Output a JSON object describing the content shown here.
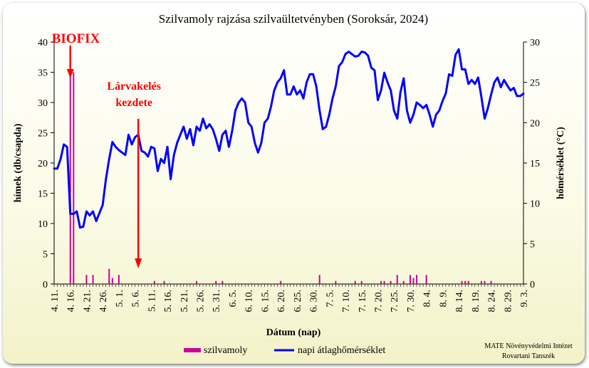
{
  "chart_data": {
    "type": "bar+line",
    "title": "Szilvamoly rajzása szilvaültetvényben (Soroksár, 2024)",
    "xlabel": "Dátum (nap)",
    "ylabel_left": "hímek (db/csapda)",
    "ylabel_right": "hőmérséklet (°C)",
    "ylim_left": [
      0,
      40
    ],
    "ylim_right": [
      0,
      30
    ],
    "yticks_left": [
      "0",
      "5",
      "10",
      "15",
      "20",
      "25",
      "30",
      "35",
      "40"
    ],
    "yticks_right": [
      "0",
      "5",
      "10",
      "15",
      "20",
      "25",
      "30"
    ],
    "x_start": "2024-04-11",
    "x_end": "2024-09-03",
    "x_tick_labels": [
      "4. 11.",
      "4. 16.",
      "4. 21.",
      "4. 26.",
      "5. 1.",
      "5. 6.",
      "5. 11.",
      "5. 16.",
      "5. 21.",
      "5. 26.",
      "5. 31.",
      "6. 5.",
      "6. 10.",
      "6. 15.",
      "6. 20.",
      "6. 25.",
      "6. 30.",
      "7. 5.",
      "7. 10.",
      "7. 15.",
      "7. 20.",
      "7. 25.",
      "7. 30.",
      "8. 4.",
      "8. 9.",
      "8. 14.",
      "8. 19.",
      "8. 24.",
      "8. 29.",
      "9. 3."
    ],
    "grid": false,
    "series": [
      {
        "name": "szilvamoly",
        "type": "bar",
        "color": "#cc0099",
        "values": [
          {
            "date": "2024-04-16",
            "value": 35
          },
          {
            "date": "2024-04-17",
            "value": 35
          },
          {
            "date": "2024-04-21",
            "value": 1.5
          },
          {
            "date": "2024-04-23",
            "value": 1.5
          },
          {
            "date": "2024-04-28",
            "value": 2.5
          },
          {
            "date": "2024-04-29",
            "value": 1
          },
          {
            "date": "2024-05-01",
            "value": 1.5
          },
          {
            "date": "2024-05-12",
            "value": 0.5
          },
          {
            "date": "2024-05-15",
            "value": 0.5
          },
          {
            "date": "2024-05-25",
            "value": 0.5
          },
          {
            "date": "2024-05-31",
            "value": 0.5
          },
          {
            "date": "2024-06-02",
            "value": 0.5
          },
          {
            "date": "2024-06-20",
            "value": 0.5
          },
          {
            "date": "2024-07-02",
            "value": 1.5
          },
          {
            "date": "2024-07-07",
            "value": 0.5
          },
          {
            "date": "2024-07-13",
            "value": 0.5
          },
          {
            "date": "2024-07-15",
            "value": 0.5
          },
          {
            "date": "2024-07-21",
            "value": 0.5
          },
          {
            "date": "2024-07-22",
            "value": 0.5
          },
          {
            "date": "2024-07-24",
            "value": 0.5
          },
          {
            "date": "2024-07-26",
            "value": 1.5
          },
          {
            "date": "2024-07-28",
            "value": 0.5
          },
          {
            "date": "2024-07-30",
            "value": 1.5
          },
          {
            "date": "2024-07-31",
            "value": 1
          },
          {
            "date": "2024-08-01",
            "value": 1.5
          },
          {
            "date": "2024-08-04",
            "value": 1.5
          },
          {
            "date": "2024-08-15",
            "value": 0.5
          },
          {
            "date": "2024-08-16",
            "value": 0.5
          },
          {
            "date": "2024-08-17",
            "value": 0.5
          },
          {
            "date": "2024-08-21",
            "value": 0.5
          },
          {
            "date": "2024-08-22",
            "value": 0.5
          },
          {
            "date": "2024-08-24",
            "value": 0.5
          }
        ]
      },
      {
        "name": "napi átlaghőmérséklet",
        "type": "line",
        "color": "#0000ff",
        "axis": "right",
        "start_date": "2024-04-11",
        "values": [
          14.3,
          14.3,
          15.5,
          17.3,
          17,
          8.7,
          8.7,
          9,
          7,
          7.1,
          9,
          8.5,
          9,
          7.8,
          8.8,
          9.8,
          13,
          15.5,
          17.6,
          17,
          16.6,
          16.3,
          16,
          18.5,
          17.3,
          18.2,
          18.5,
          16.5,
          16.3,
          15.8,
          17,
          16.8,
          14,
          15.5,
          15,
          17,
          13,
          16,
          17.5,
          18.5,
          19.5,
          18,
          19.2,
          17.2,
          19.5,
          19,
          20.5,
          19.3,
          19.8,
          19.2,
          18,
          16.5,
          18.5,
          19,
          17,
          19,
          21.5,
          22.5,
          23,
          22.5,
          20,
          19.5,
          17.5,
          16.3,
          17.5,
          20,
          20.5,
          22,
          24,
          25,
          25.5,
          26.5,
          23.5,
          23.5,
          24.5,
          23.5,
          24,
          23,
          25,
          26,
          26,
          24.5,
          21.5,
          19.2,
          19.5,
          21,
          23,
          24.5,
          27,
          27.5,
          28.5,
          28.8,
          28.5,
          28.2,
          28.3,
          28.8,
          28.7,
          28.3,
          26.8,
          26.5,
          22.8,
          24,
          26.2,
          25,
          24,
          21.5,
          20.5,
          23.8,
          25.5,
          21.5,
          20,
          21,
          22.5,
          22.2,
          21.8,
          22.2,
          21,
          19.5,
          21,
          21.5,
          22.7,
          23.6,
          26,
          25.8,
          28.4,
          29.1,
          26.6,
          26.6,
          24.8,
          25.3,
          24.8,
          25.6,
          23.2,
          20.5,
          21.8,
          23.5,
          25,
          25.6,
          24.4,
          25.3,
          24.6,
          24,
          24.3,
          23.3,
          23.3,
          23.6
        ]
      }
    ],
    "annotations": [
      {
        "text": "BIOFIX",
        "date": "2024-04-16"
      },
      {
        "text_lines": [
          "Lárvakelés",
          "kezdete"
        ],
        "date": "2024-05-07"
      }
    ]
  },
  "legend": {
    "bar_label": "szilvamoly",
    "line_label": "napi átlaghőmérséklet"
  },
  "credit": {
    "line1": "MATE Növényvédelmi Intézet",
    "line2": "Rovartani Tanszék"
  }
}
